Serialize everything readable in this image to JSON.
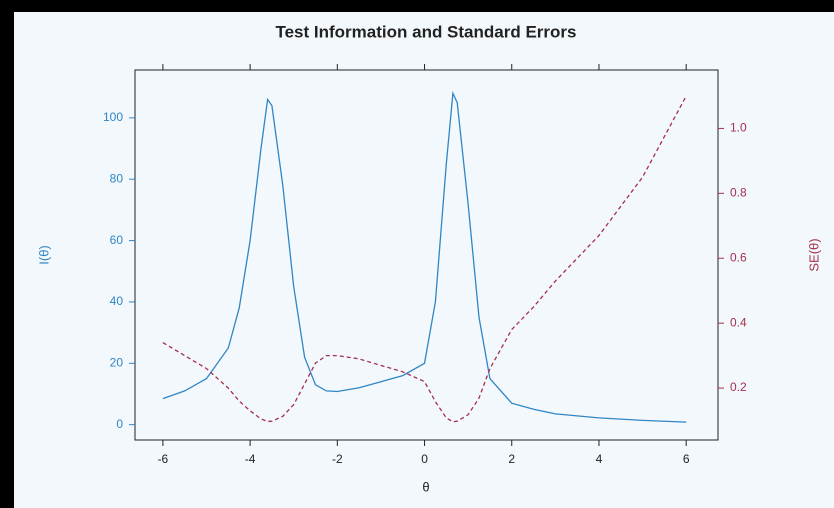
{
  "chart_data": {
    "type": "line",
    "title": "Test Information and Standard Errors",
    "xlabel": "θ",
    "ylabel": "I(θ)",
    "y2label": "SE(θ)",
    "x": [
      -6,
      -5.5,
      -5,
      -4.5,
      -4.25,
      -4,
      -3.75,
      -3.6,
      -3.5,
      -3.25,
      -3,
      -2.75,
      -2.5,
      -2.25,
      -2,
      -1.5,
      -1,
      -0.5,
      0,
      0.25,
      0.5,
      0.65,
      0.75,
      1,
      1.25,
      1.5,
      2,
      2.5,
      3,
      4,
      5,
      6
    ],
    "series": [
      {
        "color": "#2f86c6",
        "values": [
          8.5,
          11,
          15,
          25,
          38,
          60,
          90,
          106,
          104,
          78,
          45,
          22,
          13,
          11,
          10.8,
          12,
          14,
          16,
          20,
          40,
          85,
          108,
          105,
          72,
          35,
          15,
          7,
          5,
          3.5,
          2.2,
          1.38,
          0.83
        ]
      },
      {
        "color": "#a3304e",
        "axis": "y2",
        "dashed": true,
        "values": [
          0.34,
          0.3,
          0.26,
          0.2,
          0.16,
          0.13,
          0.105,
          0.097,
          0.098,
          0.113,
          0.149,
          0.213,
          0.277,
          0.3,
          0.3,
          0.29,
          0.27,
          0.25,
          0.22,
          0.158,
          0.108,
          0.096,
          0.098,
          0.118,
          0.169,
          0.26,
          0.38,
          0.45,
          0.53,
          0.67,
          0.85,
          1.1
        ]
      }
    ],
    "xlim": [
      -6.64,
      6.73
    ],
    "xticks": [
      -6,
      -4,
      -2,
      0,
      2,
      4,
      6
    ],
    "ylim": [
      -5,
      115.6
    ],
    "yticks": [
      0,
      20,
      40,
      60,
      80,
      100
    ],
    "y2lim": [
      0.04,
      1.18
    ],
    "y2ticks": [
      0.2,
      0.4,
      0.6,
      0.8,
      {
        "value": 1,
        "label": "1.0"
      }
    ],
    "ycolor": "#2f86c6",
    "y2color": "#a3304e"
  }
}
